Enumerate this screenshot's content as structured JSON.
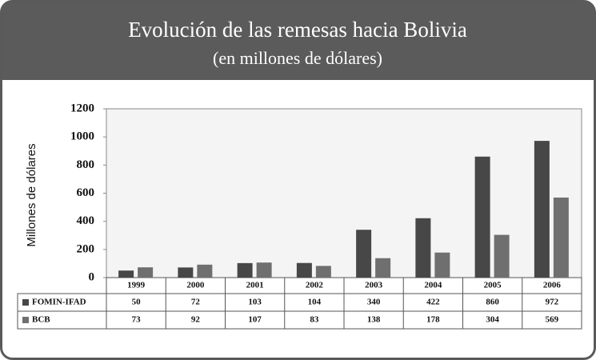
{
  "chart_data": {
    "type": "bar",
    "title": "Evolución de las remesas hacia Bolivia",
    "subtitle": "(en millones de dólares)",
    "y_label": "Millones de dólares",
    "categories": [
      "1999",
      "2000",
      "2001",
      "2002",
      "2003",
      "2004",
      "2005",
      "2006"
    ],
    "series": [
      {
        "name": "FOMIN-IFAD",
        "color": "#474747",
        "values": [
          50,
          72,
          103,
          104,
          340,
          422,
          860,
          972
        ]
      },
      {
        "name": "BCB",
        "color": "#6f6f6f",
        "values": [
          73,
          92,
          107,
          83,
          138,
          178,
          304,
          569
        ]
      }
    ],
    "ylim": [
      0,
      1200
    ],
    "yticks": [
      0,
      200,
      400,
      600,
      800,
      1000,
      1200
    ],
    "grid": false
  }
}
